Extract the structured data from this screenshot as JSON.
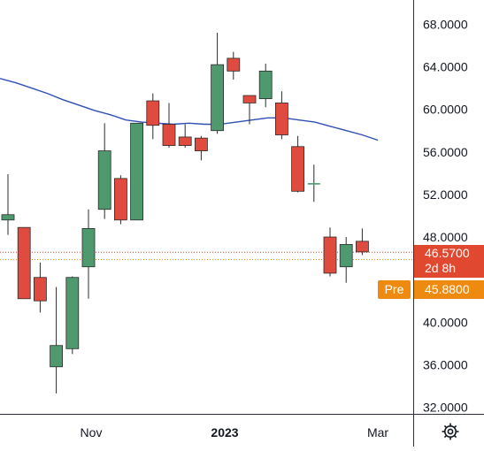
{
  "chart_data": {
    "type": "candlestick",
    "title": "",
    "xlabel": "",
    "ylabel": "",
    "ylim": [
      32,
      70
    ],
    "grid": false,
    "x_ticks": [
      "Nov",
      "2023",
      "Mar"
    ],
    "y_ticks": [
      "68.0000",
      "64.0000",
      "60.0000",
      "56.0000",
      "52.0000",
      "48.0000",
      "40.0000",
      "36.0000",
      "32.0000"
    ],
    "y_tick_values": [
      68,
      64,
      60,
      56,
      52,
      48,
      40,
      36,
      32
    ],
    "candles": [
      {
        "o": 49.6,
        "h": 53.9,
        "l": 48.2,
        "c": 50.1
      },
      {
        "o": 48.9,
        "h": 48.9,
        "l": 42.2,
        "c": 42.2
      },
      {
        "o": 44.2,
        "h": 45.6,
        "l": 40.9,
        "c": 42.0
      },
      {
        "o": 35.8,
        "h": 43.3,
        "l": 33.3,
        "c": 37.8
      },
      {
        "o": 37.5,
        "h": 44.3,
        "l": 37.0,
        "c": 44.2
      },
      {
        "o": 45.2,
        "h": 50.6,
        "l": 42.2,
        "c": 48.8
      },
      {
        "o": 50.6,
        "h": 58.7,
        "l": 49.7,
        "c": 56.1
      },
      {
        "o": 53.5,
        "h": 53.8,
        "l": 49.2,
        "c": 49.6
      },
      {
        "o": 49.6,
        "h": 58.7,
        "l": 49.6,
        "c": 58.7
      },
      {
        "o": 60.8,
        "h": 61.5,
        "l": 57.2,
        "c": 58.5
      },
      {
        "o": 58.6,
        "h": 60.6,
        "l": 56.4,
        "c": 56.6
      },
      {
        "o": 57.4,
        "h": 58.6,
        "l": 56.4,
        "c": 56.6
      },
      {
        "o": 57.3,
        "h": 57.5,
        "l": 55.2,
        "c": 56.1
      },
      {
        "o": 58.0,
        "h": 67.2,
        "l": 57.7,
        "c": 64.2
      },
      {
        "o": 64.8,
        "h": 65.4,
        "l": 62.8,
        "c": 63.6
      },
      {
        "o": 61.3,
        "h": 61.3,
        "l": 58.6,
        "c": 60.6
      },
      {
        "o": 61.0,
        "h": 64.3,
        "l": 60.2,
        "c": 63.6
      },
      {
        "o": 60.6,
        "h": 61.7,
        "l": 57.2,
        "c": 57.6
      },
      {
        "o": 56.5,
        "h": 57.5,
        "l": 52.2,
        "c": 52.3
      },
      {
        "o": 53.0,
        "h": 54.8,
        "l": 51.3,
        "c": 53.0
      },
      {
        "o": 48.0,
        "h": 48.9,
        "l": 44.3,
        "c": 44.6
      },
      {
        "o": 45.2,
        "h": 48.0,
        "l": 43.7,
        "c": 47.3
      },
      {
        "o": 47.6,
        "h": 48.8,
        "l": 46.3,
        "c": 46.6
      }
    ],
    "moving_average": {
      "color": "#2f4fb5",
      "values": [
        62.9,
        62.5,
        62.0,
        61.5,
        60.9,
        60.4,
        59.9,
        59.5,
        59.0,
        58.8,
        58.7,
        58.6,
        58.7,
        58.6,
        58.6,
        58.8,
        59.0,
        59.2,
        59.2,
        59.0,
        58.8,
        58.4,
        58.0,
        57.6,
        57.1
      ]
    },
    "price_lines": {
      "last": 46.57,
      "premarket": 45.88
    },
    "labels": {
      "last_price": "46.5700",
      "countdown": "2d 8h",
      "pre_tag": "Pre",
      "pre_price": "45.8800"
    },
    "colors": {
      "up": "#4e9a6e",
      "down": "#df4b3e",
      "last_line": "#e0482f",
      "premarket": "#ef8a11",
      "axis_text": "#131722",
      "axis_line": "#2a2e39"
    }
  },
  "toolbar": {
    "settings_icon": "gear-icon"
  }
}
